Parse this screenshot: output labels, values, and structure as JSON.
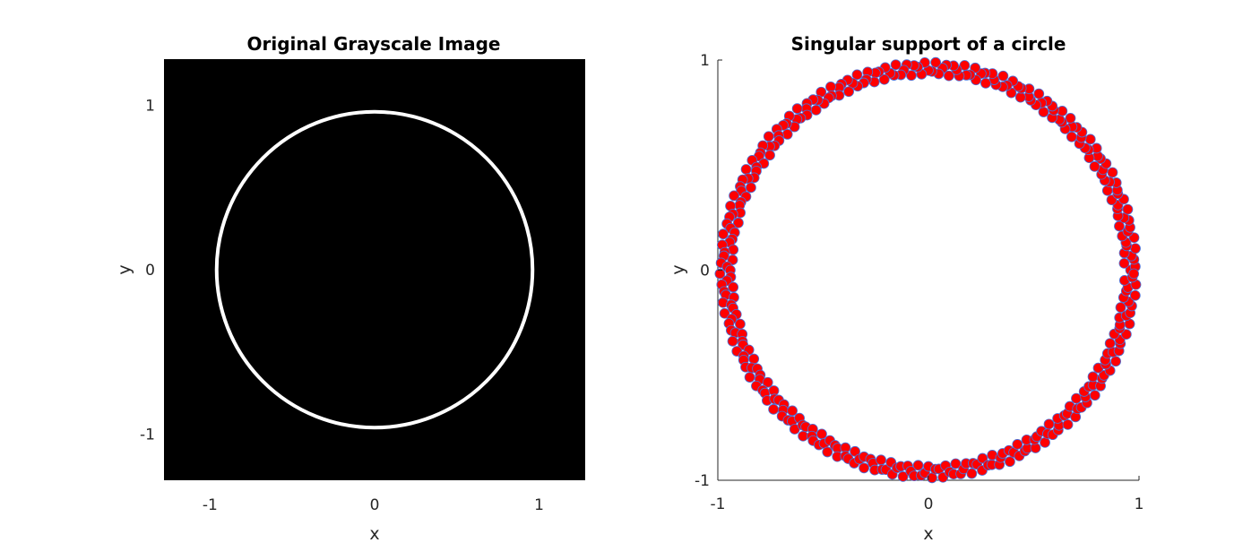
{
  "chart_data": [
    {
      "type": "heatmap",
      "title": "Original Grayscale Image",
      "xlabel": "x",
      "ylabel": "y",
      "xlim": [
        -1.28,
        1.28
      ],
      "ylim": [
        -1.28,
        1.28
      ],
      "xticks": [
        -1,
        0,
        1
      ],
      "yticks": [
        -1,
        0,
        1
      ],
      "xtick_labels": [
        "-1",
        "0",
        "1"
      ],
      "ytick_labels": [
        "1",
        "0",
        "-1"
      ],
      "background_color": "#000000",
      "ring": {
        "center": [
          0,
          0
        ],
        "radius": 0.96,
        "color": "#ffffff"
      },
      "grid": false
    },
    {
      "type": "scatter",
      "title": "Singular support of a circle",
      "xlabel": "x",
      "ylabel": "y",
      "xlim": [
        -1,
        1
      ],
      "ylim": [
        -1,
        1
      ],
      "xticks": [
        -1,
        0,
        1
      ],
      "yticks": [
        -1,
        0,
        1
      ],
      "xtick_labels": [
        "-1",
        "0",
        "1"
      ],
      "ytick_labels": [
        "1",
        "0",
        "-1"
      ],
      "grid": false,
      "marker_face_color": "#ff0000",
      "marker_edge_color": "#4a6fd6",
      "series": [
        {
          "center": [
            0,
            0
          ],
          "radius": 0.96,
          "ring_width": 0.06,
          "point_count": 360
        }
      ]
    }
  ]
}
